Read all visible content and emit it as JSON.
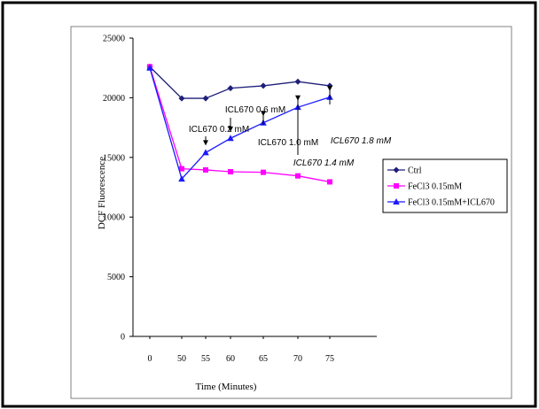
{
  "colors": {
    "ctrl": "#1f1f7a",
    "fecl3": "#ff00ff",
    "fecl3_icl670": "#1a1aff",
    "frame": "#000000",
    "plot_border": "#808080"
  },
  "chart_data": {
    "type": "line",
    "title": "",
    "xlabel": "Time (Minutes)",
    "ylabel": "DCF Fluorescence",
    "categories": [
      "0",
      "50",
      "55",
      "60",
      "65",
      "70",
      "75"
    ],
    "ylim": [
      0,
      25000
    ],
    "yticks": [
      0,
      5000,
      10000,
      15000,
      20000,
      25000
    ],
    "yticklabels": [
      "0",
      "5000",
      "10000",
      "15000",
      "20000",
      "25000"
    ],
    "grid": false,
    "legend_position": "right",
    "series": [
      {
        "name": "Ctrl",
        "marker": "diamond",
        "color": "#1f1f7a",
        "values": [
          22600,
          19950,
          19950,
          20800,
          21000,
          21350,
          21000
        ]
      },
      {
        "name": "FeCl3 0.15mM",
        "marker": "square",
        "color": "#ff00ff",
        "values": [
          22600,
          14050,
          13950,
          13800,
          13750,
          13450,
          12950
        ]
      },
      {
        "name": "FeCl3 0.15mM+ICL670",
        "marker": "triangle",
        "color": "#1a1aff",
        "values": [
          22500,
          13200,
          15400,
          16600,
          17900,
          19200,
          20050
        ]
      }
    ],
    "annotations": [
      {
        "text": "ICL670 0.2 mM",
        "italic": false,
        "x": "55",
        "arrow_tip": 16000
      },
      {
        "text": "ICL670 0.6 mM",
        "italic": false,
        "x": "60",
        "arrow_tip": 17150
      },
      {
        "text": "ICL670 1.0  mM",
        "italic": false,
        "x": "65",
        "arrow_tip": 18450
      },
      {
        "text": "ICL670 1.4 mM",
        "italic": true,
        "x": "70",
        "arrow_tip": 19750
      },
      {
        "text": "ICL670 1.8 mM",
        "italic": true,
        "x": "75",
        "arrow_tip": 20550
      }
    ]
  }
}
